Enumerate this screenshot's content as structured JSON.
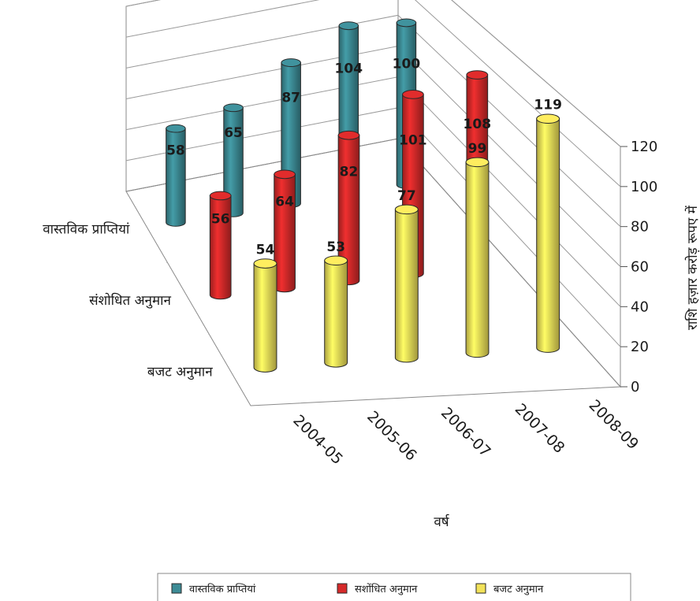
{
  "chart_data": {
    "type": "bar",
    "variant": "3d-cylinder",
    "title": "",
    "xlabel": "वर्ष",
    "ylabel": "राशि हज़ार करोड़ रूपए में",
    "categories": [
      "2004-05",
      "2005-06",
      "2006-07",
      "2007-08",
      "2008-09"
    ],
    "series": [
      {
        "name": "वास्तविक प्राप्तियां",
        "depth_label": "वास्तविक प्राप्तियां",
        "color": "#3d8c96",
        "values": [
          58,
          65,
          87,
          104,
          100
        ]
      },
      {
        "name": "सशोंधित अनुमान",
        "depth_label": "संशोधित अनुमान",
        "color": "#d62a2a",
        "values": [
          56,
          64,
          82,
          101,
          108
        ]
      },
      {
        "name": "बजट अनुमान",
        "depth_label": "बजट अनुमान",
        "color": "#f2e25a",
        "values": [
          54,
          53,
          77,
          99,
          119
        ]
      }
    ],
    "yticks": [
      "0",
      "20",
      "40",
      "60",
      "80",
      "100",
      "120"
    ],
    "ylim": [
      0,
      120
    ],
    "grid": true,
    "legend": "bottom"
  }
}
